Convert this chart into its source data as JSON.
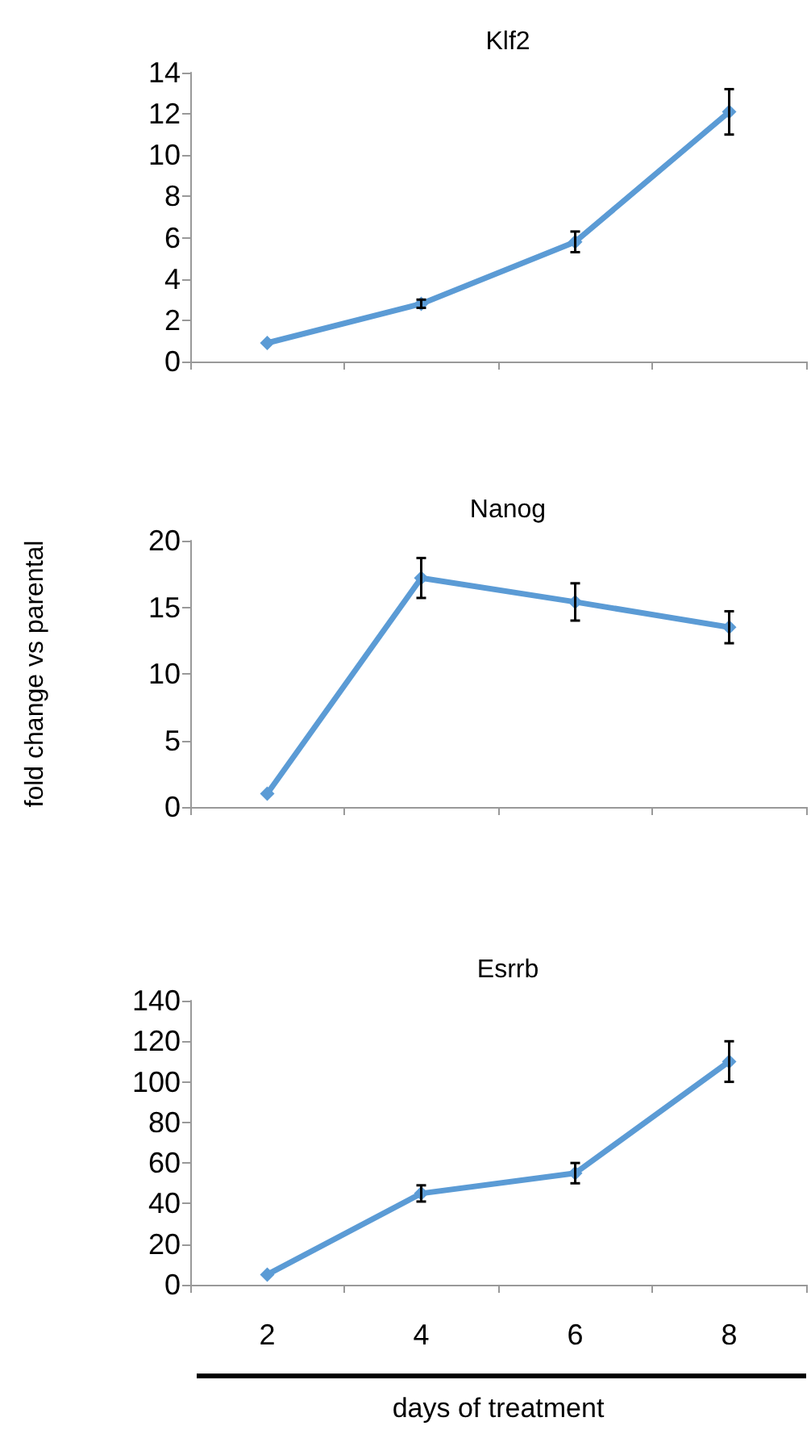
{
  "chart_data": [
    {
      "type": "line",
      "title": "Klf2",
      "categories": [
        "2",
        "4",
        "6",
        "8"
      ],
      "series": [
        {
          "color": "#5b9bd5",
          "values": [
            0.9,
            2.8,
            5.8,
            12.1
          ],
          "errors": [
            null,
            0.2,
            0.5,
            1.1
          ]
        }
      ],
      "ylim": [
        0,
        14
      ],
      "yticks": [
        0,
        2,
        4,
        6,
        8,
        10,
        12,
        14
      ],
      "tick_labels": "y",
      "marker": "diamond",
      "grid": false
    },
    {
      "type": "line",
      "title": "Nanog",
      "ylabel": "fold change vs parental",
      "categories": [
        "2",
        "4",
        "6",
        "8"
      ],
      "series": [
        {
          "color": "#5b9bd5",
          "values": [
            1,
            17.2,
            15.4,
            13.5
          ],
          "errors": [
            null,
            1.5,
            1.4,
            1.2
          ]
        }
      ],
      "ylim": [
        0,
        20
      ],
      "yticks": [
        0,
        5,
        10,
        15,
        20
      ],
      "tick_labels": "y",
      "marker": "diamond",
      "grid": false
    },
    {
      "type": "line",
      "title": "Esrrb",
      "xlabel": "days of treatment",
      "categories": [
        "2",
        "4",
        "6",
        "8"
      ],
      "series": [
        {
          "color": "#5b9bd5",
          "values": [
            5,
            45,
            55,
            110
          ],
          "errors": [
            null,
            4,
            5,
            10
          ]
        }
      ],
      "ylim": [
        0,
        140
      ],
      "yticks": [
        0,
        20,
        40,
        60,
        80,
        100,
        120,
        140
      ],
      "marker": "diamond",
      "grid": false
    }
  ]
}
